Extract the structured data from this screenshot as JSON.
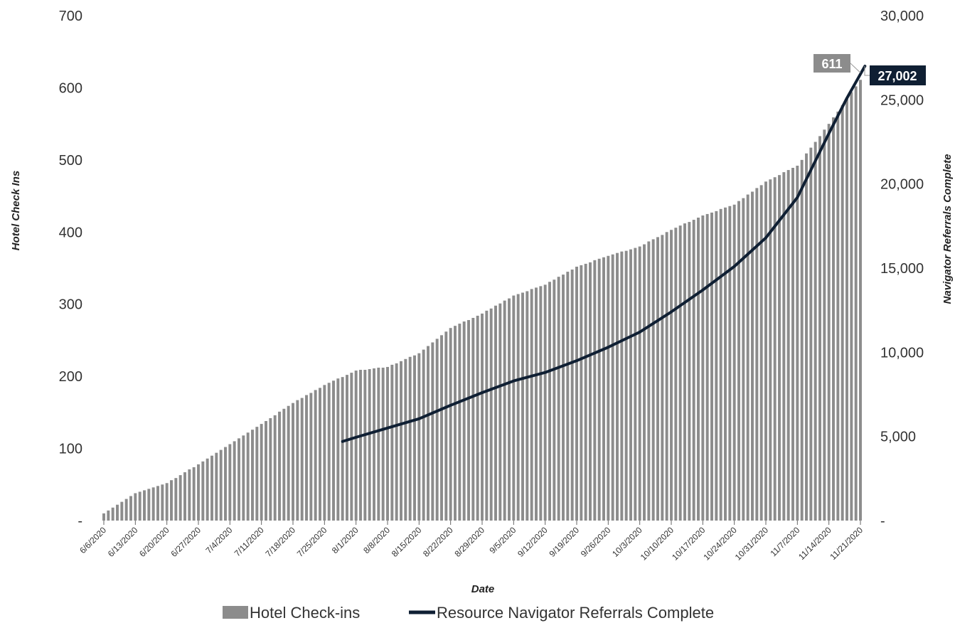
{
  "chart_data": {
    "type": "bar",
    "xlabel": "Date",
    "ylabel": "Hotel Check Ins",
    "y2label": "Navigator Referrals Complete",
    "ylim": [
      0,
      700
    ],
    "y2lim": [
      0,
      30000
    ],
    "y_ticks": [
      "-",
      "100",
      "200",
      "300",
      "400",
      "500",
      "600",
      "700"
    ],
    "y_tick_values": [
      0,
      100,
      200,
      300,
      400,
      500,
      600,
      700
    ],
    "y2_ticks": [
      "-",
      "5,000",
      "10,000",
      "15,000",
      "20,000",
      "25,000",
      "30,000"
    ],
    "y2_tick_values": [
      0,
      5000,
      10000,
      15000,
      20000,
      25000,
      30000
    ],
    "x_tick_labels": [
      "6/6/2020",
      "6/13/2020",
      "6/20/2020",
      "6/27/2020",
      "7/4/2020",
      "7/11/2020",
      "7/18/2020",
      "7/25/2020",
      "8/1/2020",
      "8/8/2020",
      "8/15/2020",
      "8/22/2020",
      "8/29/2020",
      "9/5/2020",
      "9/12/2020",
      "9/19/2020",
      "9/26/2020",
      "10/3/2020",
      "10/10/2020",
      "10/17/2020",
      "10/24/2020",
      "10/31/2020",
      "11/7/2020",
      "11/14/2020",
      "11/21/2020"
    ],
    "x_start": "6/6/2020",
    "x_end": "11/21/2020",
    "grid": false,
    "legend_position": "bottom",
    "series": [
      {
        "name": "Hotel Check-ins",
        "kind": "bar",
        "axis": "left",
        "color": "#8c8c8c",
        "points": [
          [
            "6/6/2020",
            10
          ],
          [
            "6/13/2020",
            38
          ],
          [
            "6/20/2020",
            52
          ],
          [
            "6/27/2020",
            78
          ],
          [
            "7/4/2020",
            106
          ],
          [
            "7/11/2020",
            134
          ],
          [
            "7/18/2020",
            163
          ],
          [
            "7/25/2020",
            188
          ],
          [
            "8/1/2020",
            208
          ],
          [
            "8/8/2020",
            213
          ],
          [
            "8/15/2020",
            232
          ],
          [
            "8/22/2020",
            267
          ],
          [
            "8/29/2020",
            287
          ],
          [
            "9/5/2020",
            312
          ],
          [
            "9/12/2020",
            327
          ],
          [
            "9/19/2020",
            352
          ],
          [
            "9/26/2020",
            367
          ],
          [
            "10/3/2020",
            380
          ],
          [
            "10/10/2020",
            403
          ],
          [
            "10/17/2020",
            423
          ],
          [
            "10/24/2020",
            438
          ],
          [
            "10/31/2020",
            470
          ],
          [
            "11/7/2020",
            492
          ],
          [
            "11/14/2020",
            550
          ],
          [
            "11/21/2020",
            611
          ]
        ]
      },
      {
        "name": "Resource Navigator Referrals Complete",
        "kind": "line",
        "axis": "right",
        "color": "#0f1f33",
        "points": [
          [
            "7/29/2020",
            4700
          ],
          [
            "8/1/2020",
            4950
          ],
          [
            "8/8/2020",
            5500
          ],
          [
            "8/15/2020",
            6050
          ],
          [
            "8/22/2020",
            6850
          ],
          [
            "8/29/2020",
            7600
          ],
          [
            "9/5/2020",
            8300
          ],
          [
            "9/12/2020",
            8800
          ],
          [
            "9/19/2020",
            9500
          ],
          [
            "9/26/2020",
            10300
          ],
          [
            "10/3/2020",
            11200
          ],
          [
            "10/10/2020",
            12400
          ],
          [
            "10/17/2020",
            13700
          ],
          [
            "10/24/2020",
            15100
          ],
          [
            "10/31/2020",
            16800
          ],
          [
            "11/7/2020",
            19200
          ],
          [
            "11/14/2020",
            23000
          ],
          [
            "11/18/2020",
            25100
          ],
          [
            "11/22/2020",
            27002
          ]
        ]
      }
    ],
    "annotations": [
      {
        "series": "Hotel Check-ins",
        "label": "611",
        "value": 611,
        "color": "#8c8c8c"
      },
      {
        "series": "Resource Navigator Referrals Complete",
        "label": "27,002",
        "value": 27002,
        "color": "#0f1f33"
      }
    ]
  }
}
